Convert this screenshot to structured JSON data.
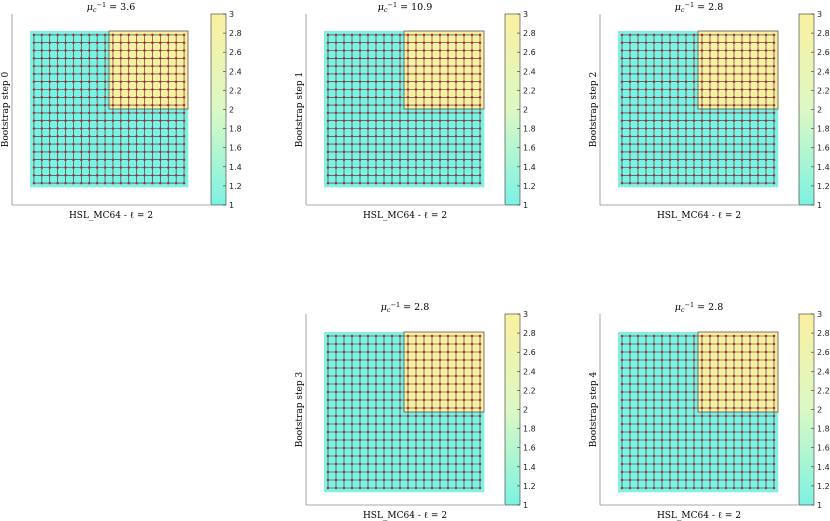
{
  "colors": {
    "low": "#7df2e2",
    "mid": "#dcf8c4",
    "high": "#faf0a0",
    "node": "#b0283c",
    "edge": "#2b2b2b",
    "axis": "#8c8c8c"
  },
  "chart_data": [
    {
      "type": "heatmap",
      "title_prefix": "μ",
      "title_value": "3.6",
      "xlabel": "HSL_MC64 - ℓ = 2",
      "ylabel": "Bootstrap step 0",
      "grid_size": [
        20,
        20
      ],
      "high_region": {
        "cols": [
          10,
          19
        ],
        "rows": [
          0,
          9
        ]
      },
      "values": {
        "low": 1,
        "high": 3
      },
      "colorbar": {
        "range": [
          1,
          3
        ],
        "ticks": [
          "1",
          "1.2",
          "1.4",
          "1.6",
          "1.8",
          "2",
          "2.2",
          "2.4",
          "2.6",
          "2.8",
          "3"
        ]
      }
    },
    {
      "type": "heatmap",
      "title_prefix": "μ",
      "title_value": "10.9",
      "xlabel": "HSL_MC64 - ℓ = 2",
      "ylabel": "Bootstrap step 1",
      "grid_size": [
        20,
        20
      ],
      "high_region": {
        "cols": [
          10,
          19
        ],
        "rows": [
          0,
          9
        ]
      },
      "values": {
        "low": 1,
        "high": 3
      },
      "colorbar": {
        "range": [
          1,
          3
        ],
        "ticks": [
          "1",
          "1.2",
          "1.4",
          "1.6",
          "1.8",
          "2",
          "2.2",
          "2.4",
          "2.6",
          "2.8",
          "3"
        ]
      }
    },
    {
      "type": "heatmap",
      "title_prefix": "μ",
      "title_value": "2.8",
      "xlabel": "HSL_MC64 - ℓ = 2",
      "ylabel": "Bootstrap step 2",
      "grid_size": [
        20,
        20
      ],
      "high_region": {
        "cols": [
          10,
          19
        ],
        "rows": [
          0,
          9
        ]
      },
      "values": {
        "low": 1,
        "high": 3
      },
      "colorbar": {
        "range": [
          1,
          3
        ],
        "ticks": [
          "1",
          "1.2",
          "1.4",
          "1.6",
          "1.8",
          "2",
          "2.2",
          "2.4",
          "2.6",
          "2.8",
          "3"
        ]
      }
    },
    {
      "type": "heatmap",
      "title_prefix": "μ",
      "title_value": "2.8",
      "xlabel": "HSL_MC64 - ℓ = 2",
      "ylabel": "Bootstrap step 3",
      "grid_size": [
        20,
        20
      ],
      "high_region": {
        "cols": [
          10,
          19
        ],
        "rows": [
          0,
          9
        ]
      },
      "values": {
        "low": 1,
        "high": 3
      },
      "colorbar": {
        "range": [
          1,
          3
        ],
        "ticks": [
          "1",
          "1.2",
          "1.4",
          "1.6",
          "1.8",
          "2",
          "2.2",
          "2.4",
          "2.6",
          "2.8",
          "3"
        ]
      }
    },
    {
      "type": "heatmap",
      "title_prefix": "μ",
      "title_value": "2.8",
      "xlabel": "HSL_MC64 - ℓ = 2",
      "ylabel": "Bootstrap step 4",
      "grid_size": [
        20,
        20
      ],
      "high_region": {
        "cols": [
          10,
          19
        ],
        "rows": [
          0,
          9
        ]
      },
      "values": {
        "low": 1,
        "high": 3
      },
      "colorbar": {
        "range": [
          1,
          3
        ],
        "ticks": [
          "1",
          "1.2",
          "1.4",
          "1.6",
          "1.8",
          "2",
          "2.2",
          "2.4",
          "2.6",
          "2.8",
          "3"
        ]
      }
    }
  ]
}
